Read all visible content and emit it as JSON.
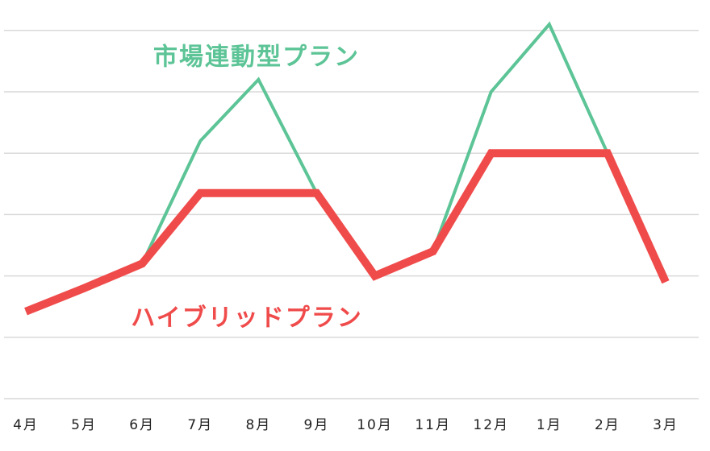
{
  "chart_data": {
    "type": "line",
    "categories": [
      "4月",
      "5月",
      "6月",
      "7月",
      "8月",
      "9月",
      "10月",
      "11月",
      "12月",
      "1月",
      "2月",
      "3月"
    ],
    "series": [
      {
        "name": "市場連動型プラン",
        "color": "#5cc496",
        "values": [
          1.42,
          1.8,
          2.2,
          4.2,
          5.2,
          3.35,
          2.0,
          2.4,
          5.0,
          6.1,
          4.0,
          2.0
        ]
      },
      {
        "name": "ハイブリッドプラン",
        "color": "#f04b4b",
        "values": [
          1.42,
          1.8,
          2.2,
          3.35,
          3.35,
          3.35,
          2.0,
          2.4,
          4.0,
          4.0,
          4.0,
          1.9
        ]
      }
    ],
    "ylim": [
      0,
      6.2
    ],
    "yticks": [
      0,
      1,
      2,
      3,
      4,
      5,
      6
    ],
    "grid": true
  }
}
